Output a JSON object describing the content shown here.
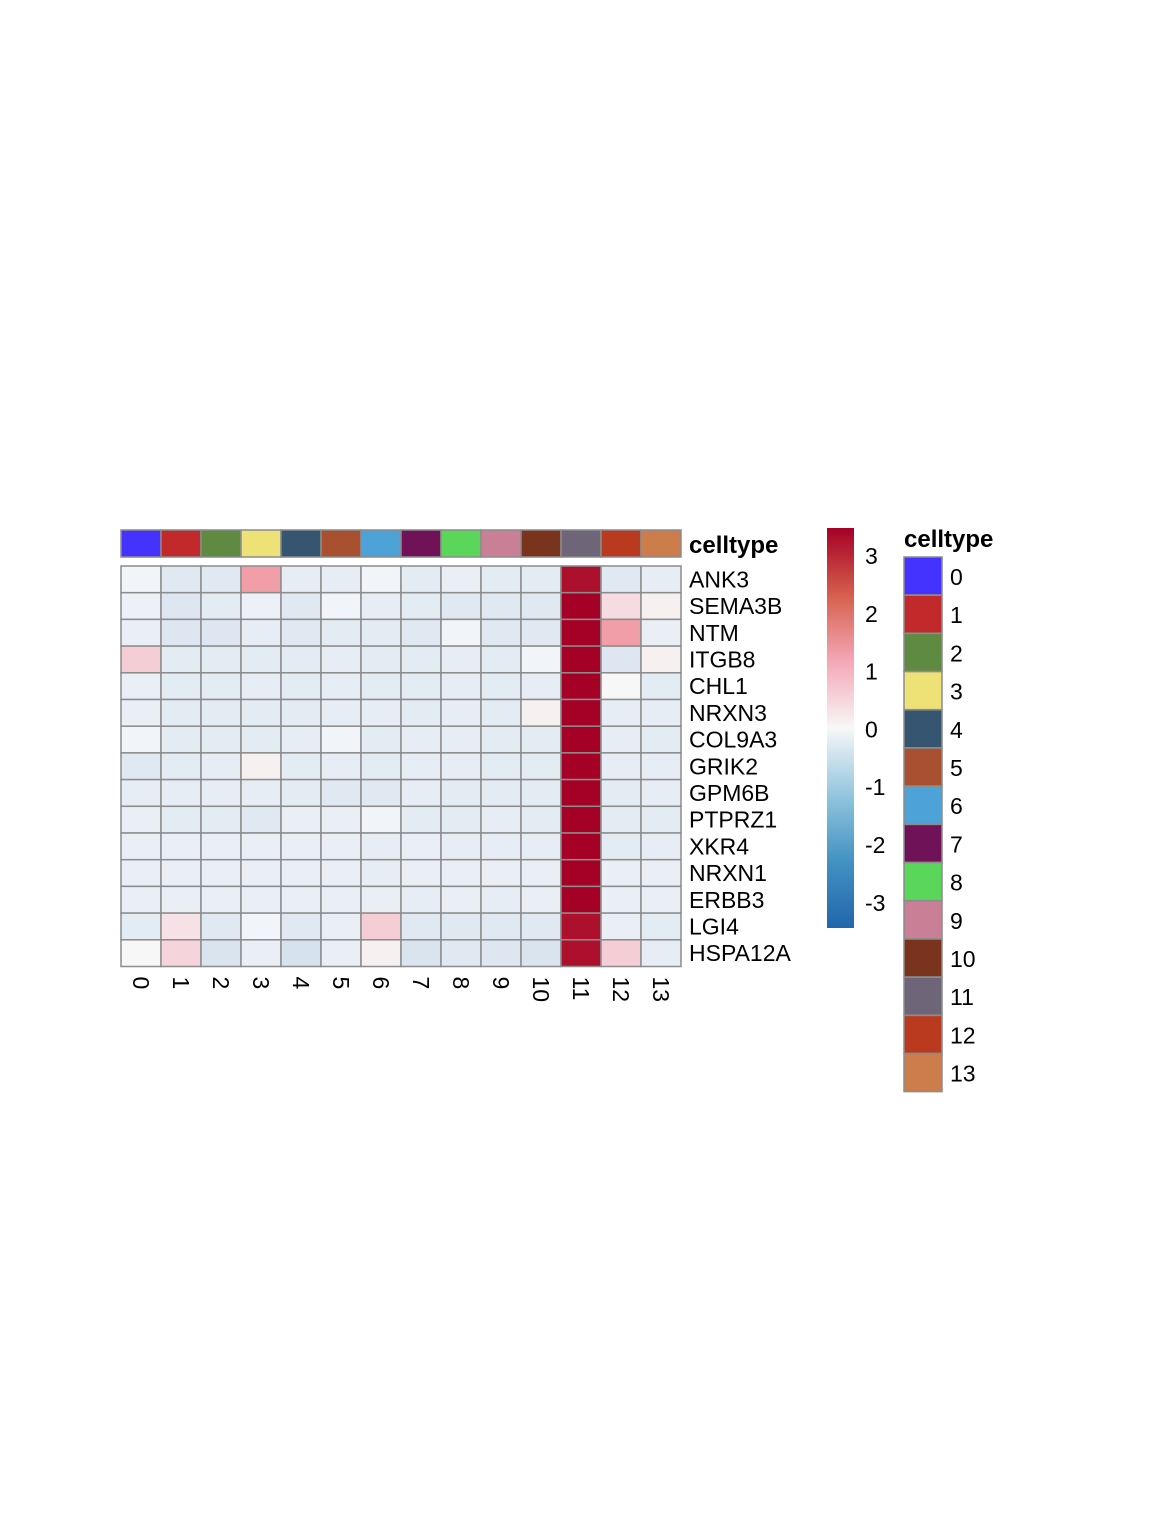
{
  "chart_data": {
    "type": "heatmap",
    "annotation_label": "celltype",
    "columns": [
      "0",
      "1",
      "2",
      "3",
      "4",
      "5",
      "6",
      "7",
      "8",
      "9",
      "10",
      "11",
      "12",
      "13"
    ],
    "rows": [
      "ANK3",
      "SEMA3B",
      "NTM",
      "ITGB8",
      "CHL1",
      "NRXN3",
      "COL9A3",
      "GRIK2",
      "GPM6B",
      "PTPRZ1",
      "XKR4",
      "NRXN1",
      "ERBB3",
      "LGI4",
      "HSPA12A"
    ],
    "values": [
      [
        -0.1,
        -0.6,
        -0.6,
        1.3,
        -0.4,
        -0.4,
        -0.1,
        -0.5,
        -0.3,
        -0.5,
        -0.5,
        3.3,
        -0.6,
        -0.4
      ],
      [
        -0.2,
        -0.7,
        -0.5,
        -0.2,
        -0.6,
        -0.1,
        -0.4,
        -0.5,
        -0.6,
        -0.6,
        -0.6,
        3.6,
        0.4,
        0.1
      ],
      [
        -0.3,
        -0.7,
        -0.7,
        -0.4,
        -0.6,
        -0.5,
        -0.5,
        -0.6,
        -0.1,
        -0.6,
        -0.6,
        3.5,
        1.3,
        -0.3
      ],
      [
        0.6,
        -0.5,
        -0.5,
        -0.5,
        -0.5,
        -0.4,
        -0.5,
        -0.5,
        -0.4,
        -0.5,
        -0.1,
        3.6,
        -0.7,
        0.1
      ],
      [
        -0.3,
        -0.5,
        -0.5,
        -0.4,
        -0.5,
        -0.4,
        -0.5,
        -0.5,
        -0.4,
        -0.5,
        -0.4,
        3.6,
        0.0,
        -0.5
      ],
      [
        -0.3,
        -0.5,
        -0.5,
        -0.5,
        -0.5,
        -0.4,
        -0.4,
        -0.5,
        -0.4,
        -0.5,
        0.1,
        3.6,
        -0.4,
        -0.4
      ],
      [
        -0.1,
        -0.5,
        -0.5,
        -0.5,
        -0.4,
        -0.1,
        -0.5,
        -0.4,
        -0.4,
        -0.5,
        -0.5,
        3.6,
        -0.4,
        -0.5
      ],
      [
        -0.6,
        -0.5,
        -0.4,
        0.1,
        -0.5,
        -0.4,
        -0.5,
        -0.4,
        -0.4,
        -0.5,
        -0.5,
        3.6,
        -0.4,
        -0.4
      ],
      [
        -0.4,
        -0.4,
        -0.4,
        -0.4,
        -0.5,
        -0.6,
        -0.6,
        -0.4,
        -0.5,
        -0.5,
        -0.5,
        3.6,
        -0.5,
        -0.4
      ],
      [
        -0.3,
        -0.5,
        -0.5,
        -0.6,
        -0.3,
        -0.3,
        -0.1,
        -0.5,
        -0.5,
        -0.4,
        -0.5,
        3.6,
        -0.5,
        -0.5
      ],
      [
        -0.3,
        -0.3,
        -0.3,
        -0.3,
        -0.3,
        -0.3,
        -0.4,
        -0.3,
        -0.4,
        -0.4,
        -0.4,
        3.6,
        -0.5,
        -0.4
      ],
      [
        -0.3,
        -0.3,
        -0.3,
        -0.3,
        -0.3,
        -0.3,
        -0.4,
        -0.3,
        -0.3,
        -0.3,
        -0.3,
        3.6,
        -0.3,
        -0.3
      ],
      [
        -0.3,
        -0.3,
        -0.3,
        -0.3,
        -0.3,
        -0.3,
        -0.3,
        -0.4,
        -0.3,
        -0.4,
        -0.3,
        3.6,
        -0.3,
        -0.3
      ],
      [
        -0.5,
        0.3,
        -0.6,
        -0.1,
        -0.6,
        -0.3,
        0.6,
        -0.6,
        -0.6,
        -0.6,
        -0.6,
        3.3,
        -0.3,
        -0.5
      ],
      [
        0.0,
        0.5,
        -0.8,
        -0.3,
        -0.9,
        -0.3,
        0.1,
        -0.8,
        -0.6,
        -0.7,
        -0.8,
        3.3,
        0.6,
        -0.4
      ]
    ],
    "colorbar": {
      "range": [
        -3.5,
        3.5
      ],
      "ticks": [
        "3",
        "2",
        "1",
        "0",
        "-1",
        "-2",
        "-3"
      ],
      "low_color": "#2166ac",
      "mid_color": "#f7f7f7",
      "high_color": "#a50026"
    },
    "celltype_colors": [
      "#4433ff",
      "#c1292a",
      "#5e8a42",
      "#eee277",
      "#355570",
      "#a85030",
      "#4da2d8",
      "#6f1258",
      "#5ad65a",
      "#c97f96",
      "#7a341d",
      "#6e6578",
      "#ba3a1f",
      "#cc7d4b"
    ],
    "legend": {
      "title": "celltype",
      "labels": [
        "0",
        "1",
        "2",
        "3",
        "4",
        "5",
        "6",
        "7",
        "8",
        "9",
        "10",
        "11",
        "12",
        "13"
      ]
    }
  }
}
